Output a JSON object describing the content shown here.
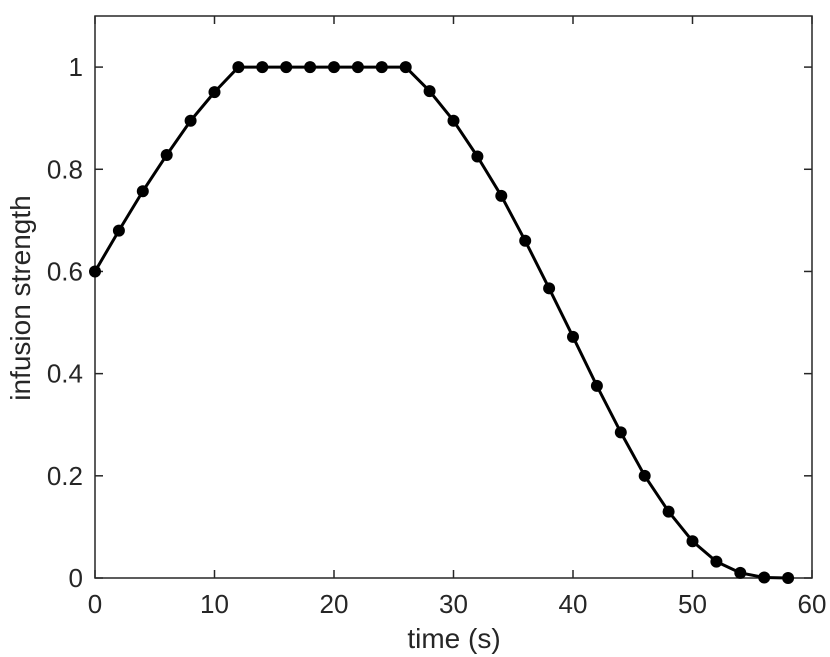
{
  "chart_data": {
    "type": "line",
    "title": "",
    "xlabel": "time (s)",
    "ylabel": "infusion strength",
    "xlim": [
      0,
      60
    ],
    "ylim": [
      0,
      1.1
    ],
    "grid": false,
    "box": true,
    "x_ticks": [
      0,
      10,
      20,
      30,
      40,
      50,
      60
    ],
    "y_ticks": [
      0,
      0.2,
      0.4,
      0.6,
      0.8,
      1
    ],
    "x_tick_labels": [
      "0",
      "10",
      "20",
      "30",
      "40",
      "50",
      "60"
    ],
    "y_tick_labels": [
      "0",
      "0.2",
      "0.4",
      "0.6",
      "0.8",
      "1"
    ],
    "series": [
      {
        "color": "#000000",
        "marker": "circle",
        "x": [
          0,
          2,
          4,
          6,
          8,
          10,
          12,
          14,
          16,
          18,
          20,
          22,
          24,
          26,
          28,
          30,
          32,
          34,
          36,
          38,
          40,
          42,
          44,
          46,
          48,
          50,
          52,
          54,
          56,
          58
        ],
        "y": [
          0.6,
          0.68,
          0.757,
          0.828,
          0.895,
          0.951,
          1,
          1,
          1,
          1,
          1,
          1,
          1,
          1,
          0.953,
          0.895,
          0.825,
          0.748,
          0.66,
          0.567,
          0.472,
          0.376,
          0.285,
          0.2,
          0.13,
          0.072,
          0.032,
          0.01,
          0.001,
          0
        ]
      }
    ]
  }
}
